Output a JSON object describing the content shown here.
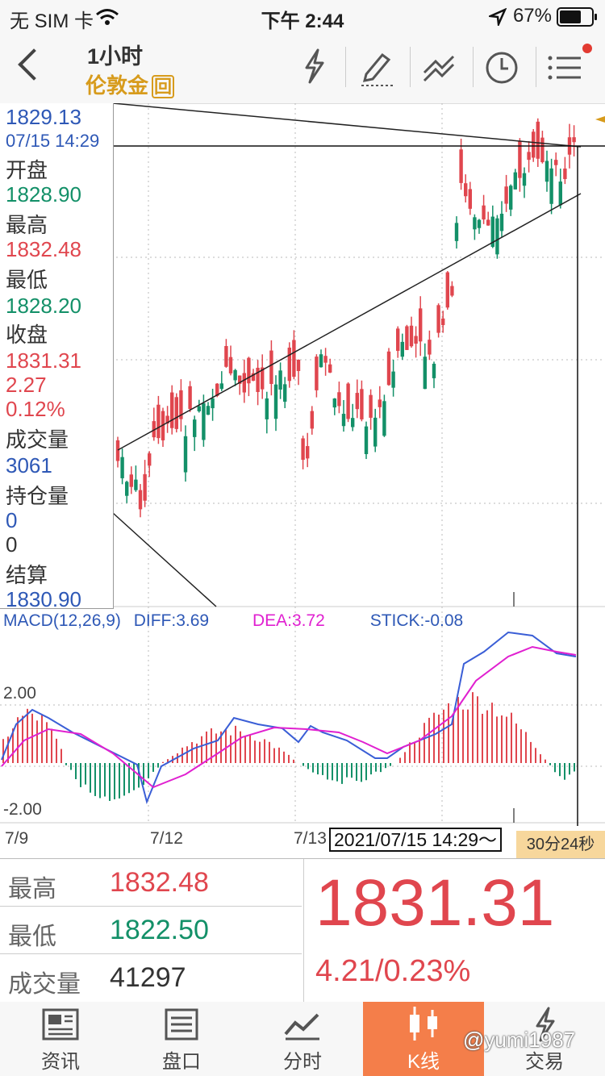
{
  "status_bar": {
    "carrier": "无 SIM 卡",
    "time": "下午 2:44",
    "battery": "67%"
  },
  "nav": {
    "period": "1小时",
    "symbol": "伦敦金",
    "symbol_badge": "回"
  },
  "info_panel": {
    "price": "1829.13",
    "datetime": "07/15 14:29",
    "open_label": "开盘",
    "open": "1828.90",
    "high_label": "最高",
    "high": "1832.48",
    "low_label": "最低",
    "low": "1828.20",
    "close_label": "收盘",
    "close": "1831.31",
    "change": "2.27",
    "change_pct": "0.12%",
    "volume_label": "成交量",
    "volume": "3061",
    "oi_label": "持仓量",
    "oi": "0",
    "oi_change": "0",
    "settle_label": "结算",
    "settle": "1830.90"
  },
  "macd": {
    "label": "MACD(12,26,9)",
    "diff": "DIFF:3.69",
    "dea": "DEA:3.72",
    "stick": "STICK:-0.08",
    "upper": "2.00",
    "lower": "-2.00"
  },
  "x_axis": {
    "d1": "7/9",
    "d2": "7/12",
    "d3": "7/13"
  },
  "crosshair_time": "2021/07/15 14:29～",
  "countdown": "30分24秒",
  "stats": {
    "high_label": "最高",
    "high": "1832.48",
    "low_label": "最低",
    "low": "1822.50",
    "vol_label": "成交量",
    "vol": "41297",
    "price": "1831.31",
    "change": "4.21/0.23%"
  },
  "tabs": [
    {
      "label": "资讯"
    },
    {
      "label": "盘口"
    },
    {
      "label": "分时"
    },
    {
      "label": "K线"
    },
    {
      "label": "交易"
    }
  ],
  "watermark": "@yumi1987",
  "colors": {
    "up": "#e0464e",
    "down": "#139068",
    "accent": "#f47e4a",
    "gold": "#d79b1c"
  }
}
